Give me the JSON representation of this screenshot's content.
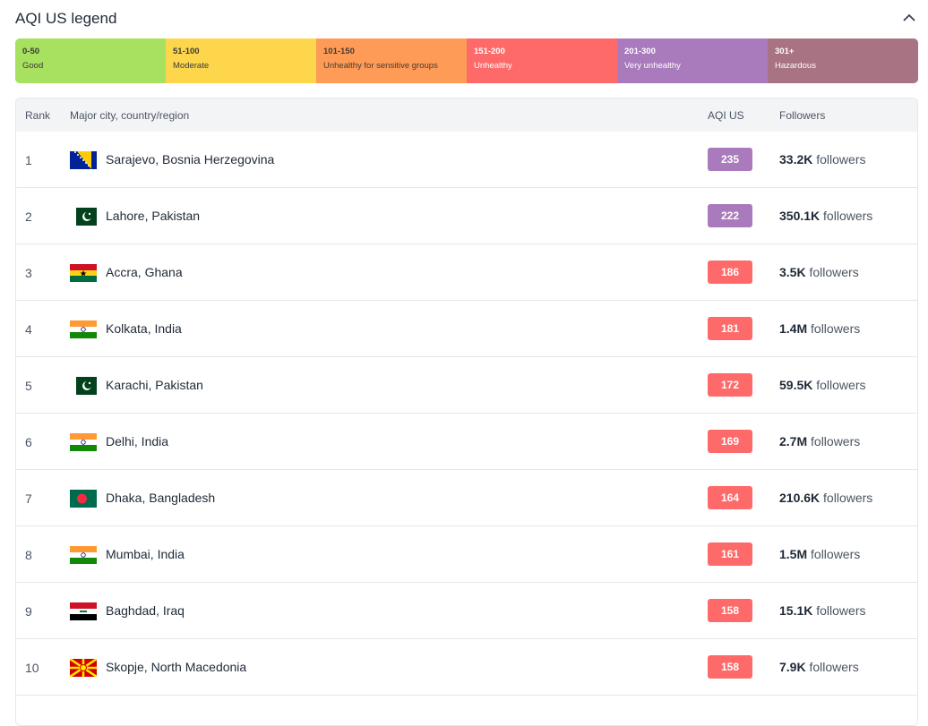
{
  "legend": {
    "title": "AQI US legend",
    "items": [
      {
        "range": "0-50",
        "label": "Good",
        "color": "#a8e05f",
        "text_color": "#3a3a3a"
      },
      {
        "range": "51-100",
        "label": "Moderate",
        "color": "#fdd64b",
        "text_color": "#3a3a3a"
      },
      {
        "range": "101-150",
        "label": "Unhealthy for sensitive groups",
        "color": "#fe9b57",
        "text_color": "#4a3a30"
      },
      {
        "range": "151-200",
        "label": "Unhealthy",
        "color": "#fe6a69",
        "text_color": "#ffffff"
      },
      {
        "range": "201-300",
        "label": "Very unhealthy",
        "color": "#a97abc",
        "text_color": "#ffffff"
      },
      {
        "range": "301+",
        "label": "Hazardous",
        "color": "#a87383",
        "text_color": "#ffffff"
      }
    ]
  },
  "table": {
    "headers": [
      "Rank",
      "Major city, country/region",
      "AQI US",
      "Followers"
    ],
    "rows": [
      {
        "rank": "1",
        "city": "Sarajevo, Bosnia Herzegovina",
        "aqi": "235",
        "color": "#a97abc",
        "followers": "33.2K",
        "unit": "followers"
      },
      {
        "rank": "2",
        "city": "Lahore, Pakistan",
        "aqi": "222",
        "color": "#a97abc",
        "followers": "350.1K",
        "unit": "followers"
      },
      {
        "rank": "3",
        "city": "Accra, Ghana",
        "aqi": "186",
        "color": "#fe6a69",
        "followers": "3.5K",
        "unit": "followers"
      },
      {
        "rank": "4",
        "city": "Kolkata, India",
        "aqi": "181",
        "color": "#fe6a69",
        "followers": "1.4M",
        "unit": "followers"
      },
      {
        "rank": "5",
        "city": "Karachi, Pakistan",
        "aqi": "172",
        "color": "#fe6a69",
        "followers": "59.5K",
        "unit": "followers"
      },
      {
        "rank": "6",
        "city": "Delhi, India",
        "aqi": "169",
        "color": "#fe6a69",
        "followers": "2.7M",
        "unit": "followers"
      },
      {
        "rank": "7",
        "city": "Dhaka, Bangladesh",
        "aqi": "164",
        "color": "#fe6a69",
        "followers": "210.6K",
        "unit": "followers"
      },
      {
        "rank": "8",
        "city": "Mumbai, India",
        "aqi": "161",
        "color": "#fe6a69",
        "followers": "1.5M",
        "unit": "followers"
      },
      {
        "rank": "9",
        "city": "Baghdad, Iraq",
        "aqi": "158",
        "color": "#fe6a69",
        "followers": "15.1K",
        "unit": "followers"
      },
      {
        "rank": "10",
        "city": "Skopje, North Macedonia",
        "aqi": "158",
        "color": "#fe6a69",
        "followers": "7.9K",
        "unit": "followers"
      }
    ]
  }
}
